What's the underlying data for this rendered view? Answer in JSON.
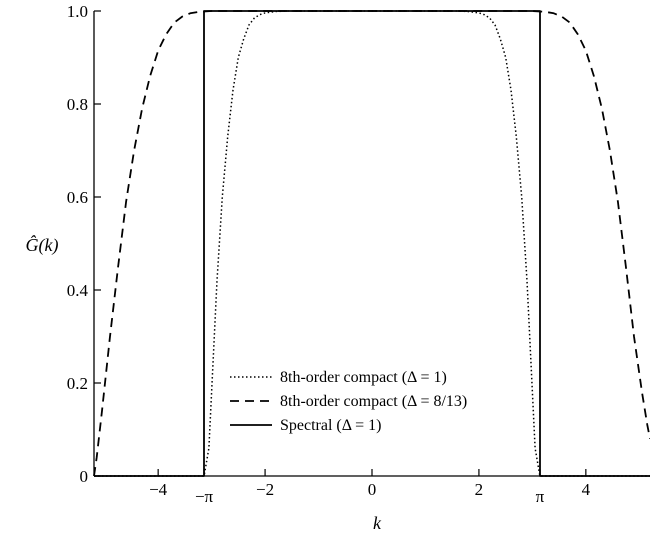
{
  "chart_data": {
    "type": "line",
    "title": "",
    "xlabel": "k",
    "ylabel": "Ĝ(k)",
    "xlim": [
      -5.2,
      5.2
    ],
    "ylim": [
      0,
      1.0
    ],
    "grid": false,
    "legend_position": "bottom-center",
    "x_ticks": [
      {
        "value": -4,
        "label": "−4"
      },
      {
        "value": -3.14159,
        "label": "−π"
      },
      {
        "value": -2,
        "label": "−2"
      },
      {
        "value": 0,
        "label": "0"
      },
      {
        "value": 2,
        "label": "2"
      },
      {
        "value": 3.14159,
        "label": "π"
      },
      {
        "value": 4,
        "label": "4"
      }
    ],
    "y_ticks": [
      {
        "value": 0,
        "label": "0"
      },
      {
        "value": 0.2,
        "label": "0.2"
      },
      {
        "value": 0.4,
        "label": "0.4"
      },
      {
        "value": 0.6,
        "label": "0.6"
      },
      {
        "value": 0.8,
        "label": "0.8"
      },
      {
        "value": 1.0,
        "label": "1.0"
      }
    ],
    "series": [
      {
        "name": "8th-order compact (Δ = 1)",
        "style": "dotted",
        "x": [
          -5.2,
          -3.2,
          -3.14,
          -3.05,
          -3.0,
          -2.95,
          -2.9,
          -2.8,
          -2.7,
          -2.6,
          -2.5,
          -2.4,
          -2.3,
          -2.2,
          -2.1,
          -2.0,
          -1.8,
          -1.6,
          -1.2,
          0,
          1.2,
          1.6,
          1.8,
          2.0,
          2.1,
          2.2,
          2.3,
          2.4,
          2.5,
          2.6,
          2.7,
          2.8,
          2.9,
          2.95,
          3.0,
          3.05,
          3.14,
          3.2,
          5.2
        ],
        "y": [
          0,
          0,
          0,
          0.06,
          0.18,
          0.3,
          0.42,
          0.6,
          0.73,
          0.83,
          0.9,
          0.94,
          0.97,
          0.985,
          0.992,
          0.996,
          0.999,
          1.0,
          1.0,
          1.0,
          1.0,
          1.0,
          0.999,
          0.996,
          0.992,
          0.985,
          0.97,
          0.94,
          0.9,
          0.83,
          0.73,
          0.6,
          0.42,
          0.3,
          0.18,
          0.06,
          0,
          0,
          0
        ]
      },
      {
        "name": "8th-order compact (Δ = 8/13)",
        "style": "dashed",
        "x": [
          -5.2,
          -5.15,
          -5.05,
          -4.9,
          -4.75,
          -4.6,
          -4.45,
          -4.3,
          -4.15,
          -4.0,
          -3.85,
          -3.7,
          -3.55,
          -3.4,
          -3.25,
          -3.14,
          -3.0,
          -2.5,
          0,
          2.5,
          3.0,
          3.14,
          3.25,
          3.4,
          3.55,
          3.7,
          3.85,
          4.0,
          4.15,
          4.3,
          4.45,
          4.6,
          4.75,
          4.9,
          5.05,
          5.15,
          5.2
        ],
        "y": [
          0.0,
          0.04,
          0.14,
          0.3,
          0.45,
          0.59,
          0.7,
          0.79,
          0.86,
          0.915,
          0.95,
          0.975,
          0.988,
          0.995,
          0.998,
          0.999,
          1.0,
          1.0,
          1.0,
          1.0,
          1.0,
          0.999,
          0.998,
          0.995,
          0.988,
          0.975,
          0.95,
          0.915,
          0.86,
          0.79,
          0.7,
          0.59,
          0.45,
          0.3,
          0.18,
          0.11,
          0.08
        ]
      },
      {
        "name": "Spectral (Δ = 1)",
        "style": "solid",
        "x": [
          -5.2,
          -3.14159,
          -3.14159,
          3.14159,
          3.14159,
          5.2
        ],
        "y": [
          0,
          0,
          1.0,
          1.0,
          0,
          0
        ]
      }
    ]
  }
}
